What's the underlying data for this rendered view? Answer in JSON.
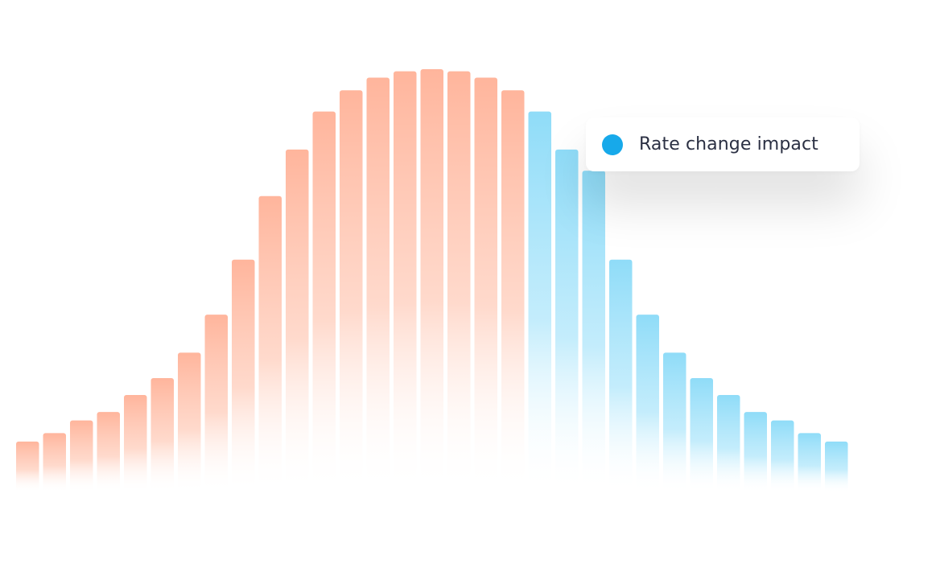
{
  "chart_data": {
    "type": "bar",
    "title": "",
    "xlabel": "",
    "ylabel": "",
    "grid": false,
    "legend_position": "top-right",
    "ylim": [
      0,
      100
    ],
    "values": [
      12,
      14,
      17,
      19,
      23,
      27,
      33,
      42,
      55,
      70,
      81,
      90,
      95,
      98,
      99.5,
      100,
      99.5,
      98,
      95,
      90,
      81,
      76,
      55,
      42,
      33,
      27,
      23,
      19,
      17,
      14,
      12
    ],
    "highlight_start_index": 19,
    "colors": {
      "base": "#ffb59c",
      "highlight": "#8fdcf8",
      "legend_dot": "#17a9ea"
    },
    "legend": [
      {
        "label": "Rate change impact",
        "color": "#17a9ea"
      }
    ]
  }
}
